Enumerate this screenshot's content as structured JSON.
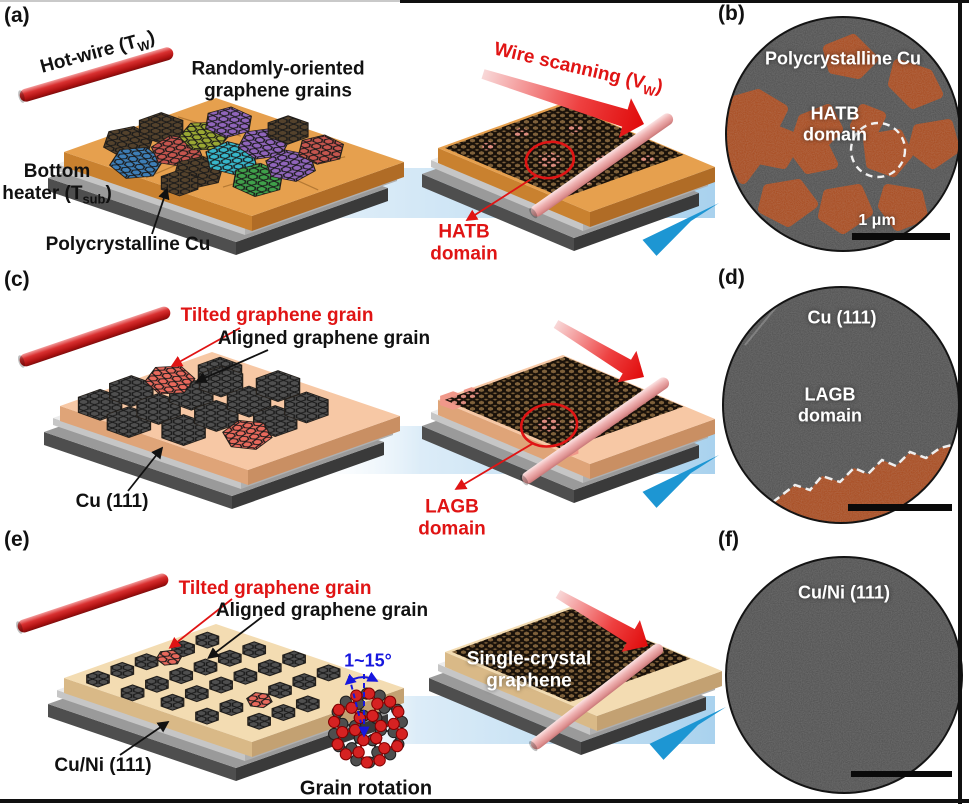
{
  "colors": {
    "accent_red": "#E01414",
    "accent_blue": "#1717DE",
    "copper_a": "#E6A04E",
    "copper_a_left": "#C9812F",
    "copper_a_right": "#B06C26",
    "copper_c": "#F7C8A5",
    "copper_c_left": "#DFA478",
    "copper_c_right": "#C98F63",
    "copper_e": "#F3DCB2",
    "copper_e_left": "#D9B987",
    "copper_e_right": "#C3A172",
    "wire_red_hi": "#F29C9C",
    "wire_red": "#D93030",
    "wire_red_dark": "#7E0C0C",
    "wire_pink_hi": "#FBE3E3",
    "wire_pink": "#EFB3B3",
    "wire_pink_dark": "#C87878",
    "band_blue": "#A9D2EE",
    "edge_blue": "#1D96D3",
    "micro_gray": "#4E4E4E",
    "domain_orange": "#A8481B",
    "film_base": "#8A6A40",
    "film_patch": "#F0988A",
    "tilted_grain": "#E8695C",
    "aligned_grain": "#4F4F4F",
    "grain_palette": [
      "#54422C",
      "#3E7EB6",
      "#C5554E",
      "#9AA833",
      "#37B6C9",
      "#9065BB",
      "#3FA04A"
    ]
  },
  "panels": {
    "a": {
      "tag": "(a)",
      "hot_wire_pre": "Hot-wire (T",
      "hot_wire_sub": "W",
      "hot_wire_post": ")",
      "grains_line1": "Randomly-oriented",
      "grains_line2": "graphene grains",
      "heater_line1": "Bottom",
      "heater_pre": "heater (T",
      "heater_sub": "sub",
      "heater_post": ")",
      "substrate": "Polycrystalline Cu",
      "scan_pre": "Wire scanning (V",
      "scan_sub": "W",
      "scan_post": ")",
      "domain_line1": "HATB",
      "domain_line2": "domain"
    },
    "b": {
      "tag": "(b)",
      "title": "Polycrystalline Cu",
      "domain_line1": "HATB",
      "domain_line2": "domain",
      "scale": "1 μm"
    },
    "c": {
      "tag": "(c)",
      "tilted": "Tilted graphene grain",
      "aligned": "Aligned graphene grain",
      "substrate": "Cu (111)",
      "domain_line1": "LAGB",
      "domain_line2": "domain"
    },
    "d": {
      "tag": "(d)",
      "title": "Cu (111)",
      "domain_line1": "LAGB",
      "domain_line2": "domain"
    },
    "e": {
      "tag": "(e)",
      "tilted": "Tilted graphene grain",
      "aligned": "Aligned graphene grain",
      "substrate": "Cu/Ni (111)",
      "angle": "1~15°",
      "single_line1": "Single-crystal",
      "single_line2": "graphene",
      "rotation": "Grain rotation"
    },
    "f": {
      "tag": "(f)",
      "title": "Cu/Ni (111)"
    }
  }
}
